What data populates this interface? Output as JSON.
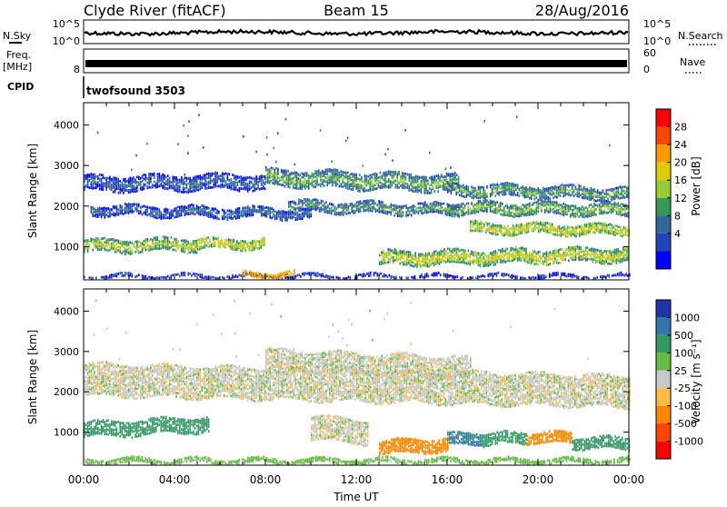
{
  "header": {
    "station": "Clyde River (fitACF)",
    "beam": "Beam 15",
    "date": "28/Aug/2016"
  },
  "summary": {
    "nsky_label": "N.Sky",
    "nsky_ticks": [
      "10^5",
      "10^0"
    ],
    "nsearch_label": "N.Search",
    "nsearch_ticks": [
      "10^5",
      "10^0"
    ],
    "freq_label_1": "Freq.",
    "freq_label_2": "[MHz]",
    "freq_ticks": [
      "8"
    ],
    "nave_label": "Nave",
    "nave_ticks": [
      "60",
      "0"
    ],
    "cpid_label": "CPID",
    "cpid_value": "twofsound 3503"
  },
  "chart_data": [
    {
      "type": "heatmap",
      "name": "power",
      "ylabel": "Slant Range [km]",
      "yticks": [
        1000,
        2000,
        3000,
        4000
      ],
      "ylim": [
        180,
        4550
      ],
      "xlabel": "Time UT",
      "xticks": [
        "00:00",
        "04:00",
        "08:00",
        "12:00",
        "16:00",
        "20:00",
        "00:00"
      ],
      "xlim_hours": [
        0,
        24
      ],
      "colorbar": {
        "label": "Power [dB]",
        "ticks": [
          "28",
          "24",
          "20",
          "16",
          "12",
          "8",
          "4"
        ],
        "colors": [
          "#ff0000",
          "#ff4400",
          "#ff9900",
          "#ddcc00",
          "#99cc33",
          "#339955",
          "#336699",
          "#2244bb",
          "#0000ff"
        ]
      },
      "bands": [
        {
          "t0": 0.0,
          "t1": 5.0,
          "r_mid_start": 1000,
          "r_mid_end": 1050,
          "width": 320,
          "v": 18
        },
        {
          "t0": 5.0,
          "t1": 8.0,
          "r_mid_start": 1050,
          "r_mid_end": 1080,
          "width": 260,
          "v": 20
        },
        {
          "t0": 13.0,
          "t1": 24.0,
          "r_mid_start": 700,
          "r_mid_end": 800,
          "width": 350,
          "v": 19
        },
        {
          "t0": 0.3,
          "t1": 10.0,
          "r_mid_start": 1900,
          "r_mid_end": 1800,
          "width": 250,
          "v": 10
        },
        {
          "t0": 9.0,
          "t1": 16.5,
          "r_mid_start": 2000,
          "r_mid_end": 1900,
          "width": 280,
          "v": 13
        },
        {
          "t0": 16.0,
          "t1": 24.0,
          "r_mid_start": 1950,
          "r_mid_end": 1900,
          "width": 300,
          "v": 16
        },
        {
          "t0": 17.0,
          "t1": 24.0,
          "r_mid_start": 1450,
          "r_mid_end": 1400,
          "width": 260,
          "v": 20
        },
        {
          "t0": 0.0,
          "t1": 8.0,
          "r_mid_start": 2550,
          "r_mid_end": 2600,
          "width": 380,
          "v": 9
        },
        {
          "t0": 8.0,
          "t1": 16.5,
          "r_mid_start": 2700,
          "r_mid_end": 2550,
          "width": 420,
          "v": 15
        },
        {
          "t0": 16.0,
          "t1": 24.0,
          "r_mid_start": 2400,
          "r_mid_end": 2300,
          "width": 300,
          "v": 14
        },
        {
          "t0": 0.0,
          "t1": 24.0,
          "r_mid_start": 260,
          "r_mid_end": 260,
          "width": 90,
          "v": 8
        },
        {
          "t0": 7.0,
          "t1": 9.3,
          "r_mid_start": 300,
          "r_mid_end": 320,
          "width": 120,
          "v": 26
        }
      ]
    },
    {
      "type": "heatmap",
      "name": "velocity",
      "ylabel": "Slant Range [km]",
      "yticks": [
        1000,
        2000,
        3000,
        4000
      ],
      "ylim": [
        180,
        4550
      ],
      "xlabel": "Time UT",
      "xticks": [
        "00:00",
        "04:00",
        "08:00",
        "12:00",
        "16:00",
        "20:00",
        "00:00"
      ],
      "xlim_hours": [
        0,
        24
      ],
      "colorbar": {
        "label": "Velocity [m s⁻¹]",
        "ticks": [
          "1000",
          "500",
          "100",
          "25",
          "-25",
          "-100",
          "-500",
          "-1000"
        ],
        "colors": [
          "#2233aa",
          "#3377aa",
          "#339966",
          "#66bb44",
          "#c8c8c8",
          "#ffbb44",
          "#ff8800",
          "#ff4400",
          "#ff0000"
        ]
      },
      "bands": [
        {
          "t0": 0.0,
          "t1": 5.5,
          "r_mid_start": 1050,
          "r_mid_end": 1200,
          "width": 380,
          "v": 300
        },
        {
          "t0": 13.0,
          "t1": 16.0,
          "r_mid_start": 600,
          "r_mid_end": 700,
          "width": 340,
          "v": -300
        },
        {
          "t0": 16.0,
          "t1": 17.5,
          "r_mid_start": 800,
          "r_mid_end": 850,
          "width": 300,
          "v": 600
        },
        {
          "t0": 17.5,
          "t1": 19.5,
          "r_mid_start": 800,
          "r_mid_end": 850,
          "width": 300,
          "v": 150
        },
        {
          "t0": 19.5,
          "t1": 21.5,
          "r_mid_start": 850,
          "r_mid_end": 850,
          "width": 280,
          "v": -300
        },
        {
          "t0": 21.5,
          "t1": 24.0,
          "r_mid_start": 750,
          "r_mid_end": 700,
          "width": 300,
          "v": 200
        },
        {
          "t0": 0.0,
          "t1": 24.0,
          "r_mid_start": 2300,
          "r_mid_end": 2000,
          "width": 800,
          "v": 0
        },
        {
          "t0": 8.0,
          "t1": 17.0,
          "r_mid_start": 2800,
          "r_mid_end": 2600,
          "width": 500,
          "v": 0
        },
        {
          "t0": 10.0,
          "t1": 12.5,
          "r_mid_start": 1100,
          "r_mid_end": 1000,
          "width": 600,
          "v": 0
        },
        {
          "t0": 0.0,
          "t1": 24.0,
          "r_mid_start": 280,
          "r_mid_end": 280,
          "width": 120,
          "v": 60
        }
      ]
    }
  ]
}
